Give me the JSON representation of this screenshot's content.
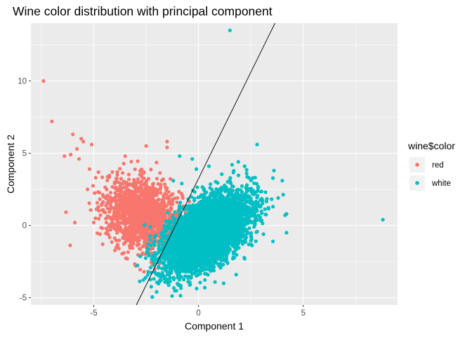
{
  "chart_data": {
    "type": "scatter",
    "title": "Wine color distribution with principal component",
    "xlabel": "Component 1",
    "ylabel": "Component 2",
    "xlim": [
      -8.0,
      9.5
    ],
    "ylim": [
      -5.5,
      14.0
    ],
    "x_ticks": [
      -5,
      0,
      5
    ],
    "y_ticks": [
      -5,
      0,
      5,
      10
    ],
    "grid": true,
    "background": "#ebebeb",
    "legend": {
      "title": "wine$color",
      "position": "right",
      "entries": [
        {
          "label": "red",
          "color": "#f8766d"
        },
        {
          "label": "white",
          "color": "#00bfc4"
        }
      ]
    },
    "principal_component_line": {
      "color": "#000000",
      "points": [
        [
          -3.0,
          -5.6
        ],
        [
          3.65,
          14.0
        ]
      ]
    },
    "series": [
      {
        "name": "red",
        "color": "#f8766d",
        "center": [
          -2.6,
          0.7
        ],
        "spread": [
          0.9,
          1.2
        ],
        "correlation": -0.25,
        "n_points": 1599,
        "notable_points": [
          [
            -7.4,
            10.0
          ],
          [
            -7.0,
            7.2
          ],
          [
            -6.0,
            6.3
          ],
          [
            -5.6,
            6.0
          ],
          [
            -5.5,
            5.8
          ],
          [
            -5.1,
            5.6
          ],
          [
            -5.8,
            5.3
          ],
          [
            -6.1,
            4.9
          ],
          [
            -5.7,
            4.6
          ],
          [
            -6.4,
            4.8
          ],
          [
            -5.2,
            3.9
          ],
          [
            -5.9,
            0.2
          ],
          [
            -5.0,
            0.2
          ],
          [
            -4.4,
            0.2
          ],
          [
            -4.7,
            -0.6
          ],
          [
            -1.5,
            5.8
          ],
          [
            -1.5,
            5.4
          ],
          [
            -3.5,
            4.8
          ],
          [
            -2.5,
            5.5
          ],
          [
            -4.0,
            3.0
          ],
          [
            -4.8,
            2.3
          ],
          [
            -5.3,
            2.5
          ],
          [
            -4.2,
            -0.3
          ],
          [
            -3.8,
            -1.6
          ],
          [
            -3.4,
            -2.3
          ],
          [
            -3.0,
            -2.8
          ],
          [
            -2.6,
            -3.2
          ],
          [
            -2.2,
            -2.7
          ],
          [
            -1.9,
            -2.3
          ],
          [
            -1.6,
            -1.5
          ],
          [
            -1.3,
            2.1
          ],
          [
            -1.0,
            1.9
          ]
        ]
      },
      {
        "name": "white",
        "color": "#00bfc4",
        "center": [
          0.4,
          -0.5
        ],
        "spread": [
          1.0,
          1.3
        ],
        "correlation": 0.55,
        "n_points": 4898,
        "notable_points": [
          [
            1.5,
            13.5
          ],
          [
            8.8,
            0.4
          ],
          [
            2.8,
            5.6
          ],
          [
            -0.9,
            4.8
          ],
          [
            -0.3,
            4.6
          ],
          [
            0.5,
            4.1
          ],
          [
            -0.1,
            3.9
          ],
          [
            2.2,
            4.1
          ],
          [
            3.6,
            3.8
          ],
          [
            4.0,
            3.1
          ],
          [
            4.2,
            -0.5
          ],
          [
            4.2,
            0.8
          ],
          [
            3.8,
            1.9
          ],
          [
            -1.0,
            -3.4
          ],
          [
            -1.4,
            -3.7
          ],
          [
            -2.0,
            -4.6
          ],
          [
            -0.4,
            -4.1
          ],
          [
            0.3,
            -4.3
          ],
          [
            1.2,
            -4.0
          ],
          [
            -2.4,
            -3.2
          ],
          [
            -2.3,
            -0.1
          ],
          [
            -2.4,
            -1.3
          ],
          [
            2.2,
            -2.3
          ],
          [
            1.8,
            -3.4
          ],
          [
            3.1,
            -0.6
          ],
          [
            -1.2,
            3.1
          ],
          [
            -0.8,
            2.9
          ],
          [
            1.6,
            4.2
          ],
          [
            2.3,
            3.6
          ],
          [
            3.2,
            2.3
          ]
        ]
      }
    ]
  }
}
